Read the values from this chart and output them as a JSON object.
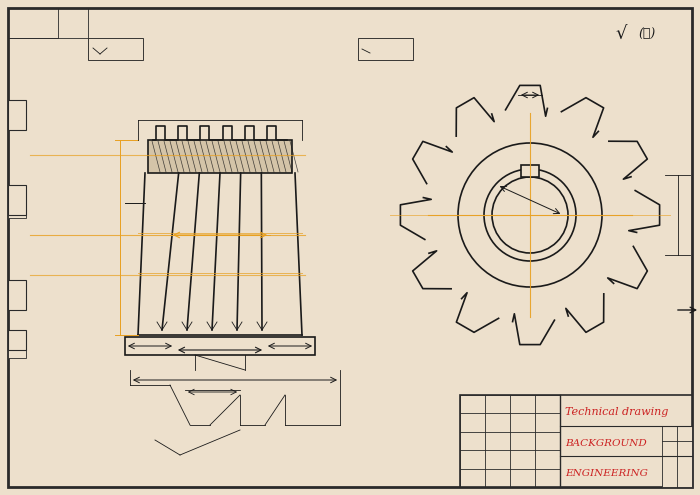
{
  "bg_color": "#EDE0CC",
  "border_color": "#2a2a2a",
  "line_color": "#1a1a1a",
  "dim_line_color": "#E8A020",
  "red_text_color": "#CC2222",
  "title_texts": [
    "Technical drawing",
    "BACKGROUND",
    "ENGINEERING"
  ],
  "sqrt_symbol": "√",
  "figsize": [
    7.0,
    4.95
  ],
  "dpi": 100
}
